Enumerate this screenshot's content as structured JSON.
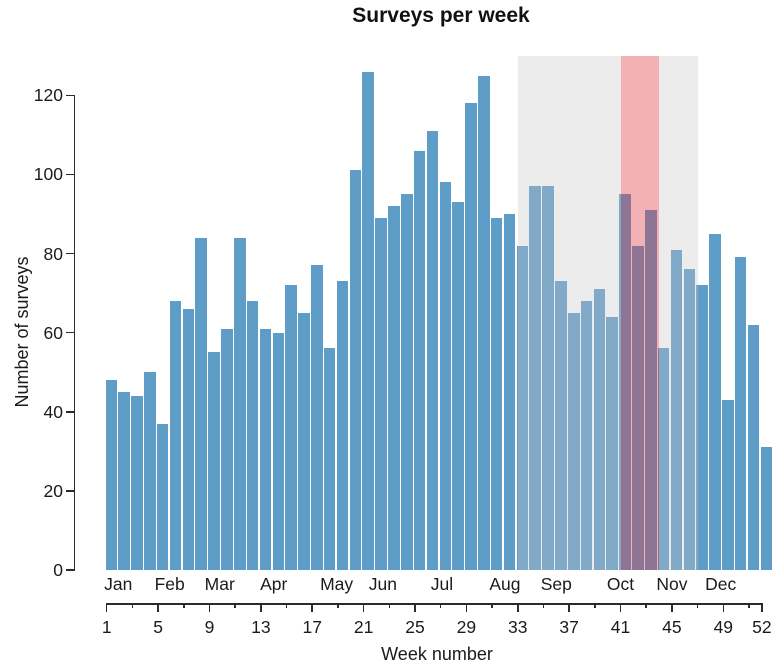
{
  "chart_data": {
    "type": "bar",
    "title": "Surveys per week",
    "xlabel": "Week number",
    "ylabel": "Number of surveys",
    "x": [
      1,
      2,
      3,
      4,
      5,
      6,
      7,
      8,
      9,
      10,
      11,
      12,
      13,
      14,
      15,
      16,
      17,
      18,
      19,
      20,
      21,
      22,
      23,
      24,
      25,
      26,
      27,
      28,
      29,
      30,
      31,
      32,
      33,
      34,
      35,
      36,
      37,
      38,
      39,
      40,
      41,
      42,
      43,
      44,
      45,
      46,
      47,
      48,
      49,
      50,
      51,
      52
    ],
    "values": [
      48,
      45,
      44,
      50,
      37,
      68,
      66,
      84,
      55,
      61,
      84,
      68,
      61,
      60,
      72,
      65,
      77,
      56,
      73,
      101,
      126,
      89,
      92,
      95,
      106,
      111,
      98,
      93,
      118,
      125,
      89,
      90,
      82,
      97,
      97,
      73,
      65,
      68,
      71,
      64,
      95,
      82,
      91,
      56,
      81,
      76,
      72,
      85,
      43,
      79,
      62,
      31
    ],
    "ylim": [
      0,
      130
    ],
    "y_ticks": [
      0,
      20,
      40,
      60,
      80,
      100,
      120
    ],
    "x_major_ticks": [
      1,
      5,
      9,
      13,
      17,
      21,
      25,
      29,
      33,
      37,
      41,
      45,
      49,
      52
    ],
    "x_minor_ticks": [
      3,
      7,
      11,
      15,
      19,
      23,
      27,
      31,
      35,
      39,
      43,
      47,
      51
    ],
    "months": [
      {
        "label": "Jan",
        "week": 1.9
      },
      {
        "label": "Feb",
        "week": 5.9
      },
      {
        "label": "Mar",
        "week": 9.8
      },
      {
        "label": "Apr",
        "week": 14.0
      },
      {
        "label": "May",
        "week": 18.9
      },
      {
        "label": "Jun",
        "week": 22.5
      },
      {
        "label": "Jul",
        "week": 27.1
      },
      {
        "label": "Aug",
        "week": 32.0
      },
      {
        "label": "Sep",
        "week": 36.0
      },
      {
        "label": "Oct",
        "week": 41.0
      },
      {
        "label": "Nov",
        "week": 45.0
      },
      {
        "label": "Dec",
        "week": 48.8
      }
    ],
    "bar_color": "#5e9dc8",
    "text_color": "#1b1b1b",
    "regions": [
      {
        "name": "shaded-region-left",
        "from_week": 33,
        "to_week": 41,
        "color": "#c5c5c5",
        "opacity": 0.33
      },
      {
        "name": "highlight-region",
        "from_week": 41,
        "to_week": 44,
        "color": "#dd343c",
        "opacity": 0.38
      },
      {
        "name": "shaded-region-right",
        "from_week": 44,
        "to_week": 47,
        "color": "#c5c5c5",
        "opacity": 0.33
      }
    ],
    "grid": false,
    "legend_position": "none"
  }
}
